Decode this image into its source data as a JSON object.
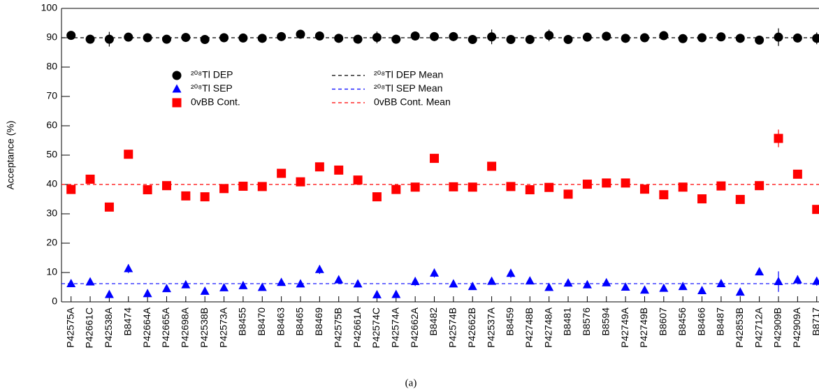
{
  "chart_data": {
    "type": "scatter",
    "y_label": "Acceptance (%)",
    "caption": "(a)",
    "categories": [
      "P42575A",
      "P42661C",
      "P42538A",
      "B8474",
      "P42664A",
      "P42665A",
      "P42698A",
      "P42538B",
      "P42573A",
      "B8455",
      "B8470",
      "B8463",
      "B8465",
      "B8469",
      "P42575B",
      "P42661A",
      "P42574C",
      "P42574A",
      "P42662A",
      "B8482",
      "P42574B",
      "P42662B",
      "P42537A",
      "B8459",
      "P42748B",
      "P42748A",
      "B8481",
      "B8576",
      "B8594",
      "P42749A",
      "P42749B",
      "B8607",
      "B8456",
      "B8466",
      "B8487",
      "P42853B",
      "P42712A",
      "P42909B",
      "P42909A",
      "B8717"
    ],
    "ylim": [
      0,
      100
    ],
    "yticks": [
      0,
      10,
      20,
      30,
      40,
      50,
      60,
      70,
      80,
      90,
      100
    ],
    "series": [
      {
        "name": "²⁰⁸Tl DEP",
        "color": "#000000",
        "marker": "circle",
        "values": [
          90.8,
          89.5,
          89.5,
          90.2,
          90.0,
          89.5,
          90.1,
          89.4,
          90.0,
          89.9,
          89.8,
          90.4,
          91.2,
          90.6,
          89.8,
          89.5,
          90.1,
          89.5,
          90.6,
          90.4,
          90.4,
          89.4,
          90.3,
          89.4,
          89.4,
          90.8,
          89.4,
          90.2,
          90.5,
          89.8,
          90.0,
          90.7,
          89.7,
          90.0,
          90.3,
          89.8,
          89.2,
          90.2,
          89.9,
          89.8
        ],
        "errors": [
          1,
          1.5,
          2.5,
          0.5,
          1.2,
          0.5,
          0.5,
          0.5,
          1,
          0.5,
          0.5,
          0.5,
          0.5,
          0.5,
          0.5,
          0.5,
          2,
          1.5,
          1.5,
          1.5,
          1.5,
          1.5,
          2.5,
          1.5,
          1.5,
          2,
          1.5,
          0.5,
          0.5,
          0.5,
          0.5,
          0.5,
          0.5,
          0.5,
          0.5,
          0.5,
          0.5,
          3,
          1.5,
          2
        ]
      },
      {
        "name": "²⁰⁸Tl SEP",
        "color": "#0000ff",
        "marker": "triangle",
        "values": [
          6.2,
          6.8,
          2.5,
          11.3,
          2.8,
          4.5,
          5.8,
          3.6,
          4.8,
          5.5,
          4.9,
          6.6,
          6.1,
          11.0,
          7.5,
          6.1,
          2.4,
          2.5,
          6.9,
          9.8,
          6.1,
          5.2,
          7.0,
          9.7,
          7.1,
          4.9,
          6.4,
          5.8,
          6.5,
          5.0,
          4.0,
          4.6,
          5.2,
          3.8,
          6.2,
          3.3,
          10.2,
          6.9,
          7.5,
          7.0
        ],
        "errors": [
          0.5,
          0.5,
          0.5,
          1.5,
          0.5,
          0.5,
          0.5,
          0.5,
          0.5,
          0.5,
          0.5,
          0.5,
          0.5,
          1.5,
          0.5,
          0.5,
          0.5,
          0.5,
          1.5,
          1.5,
          0.5,
          1,
          0.5,
          1.5,
          0.5,
          1,
          0.5,
          0.5,
          0.5,
          0.5,
          0.5,
          0.5,
          0.5,
          0.5,
          0.5,
          0.5,
          0.5,
          3.5,
          1.5,
          1.5
        ]
      },
      {
        "name": "0vBB Cont.",
        "color": "#ff0000",
        "marker": "square",
        "values": [
          38.3,
          41.8,
          32.3,
          50.3,
          38.2,
          39.6,
          36.1,
          35.8,
          38.6,
          39.4,
          39.3,
          43.8,
          40.9,
          46.0,
          44.9,
          41.5,
          35.8,
          38.3,
          39.1,
          48.9,
          39.2,
          39.1,
          46.2,
          39.3,
          38.2,
          39.0,
          36.7,
          40.1,
          40.5,
          40.5,
          38.4,
          36.5,
          39.1,
          35.1,
          39.5,
          34.9,
          39.6,
          55.7,
          43.5,
          31.5
        ],
        "errors": [
          0.5,
          0.5,
          0.5,
          0.5,
          0.5,
          0.5,
          0.5,
          0.5,
          0.5,
          0.5,
          0.5,
          0.5,
          0.5,
          0.5,
          0.5,
          0.5,
          0.5,
          0.5,
          0.5,
          1.5,
          0.5,
          0.5,
          0.5,
          0.5,
          0.5,
          0.5,
          0.5,
          0.5,
          0.5,
          0.5,
          0.5,
          0.5,
          0.5,
          0.5,
          0.5,
          0.5,
          0.5,
          3,
          0.5,
          0.5
        ]
      }
    ],
    "mean_lines": [
      {
        "name": "²⁰⁸Tl DEP Mean",
        "value": 90.0,
        "color": "#000000"
      },
      {
        "name": "²⁰⁸Tl SEP Mean",
        "value": 6.2,
        "color": "#0000ff"
      },
      {
        "name": "0vBB Cont. Mean",
        "value": 40.0,
        "color": "#ff0000"
      }
    ]
  }
}
